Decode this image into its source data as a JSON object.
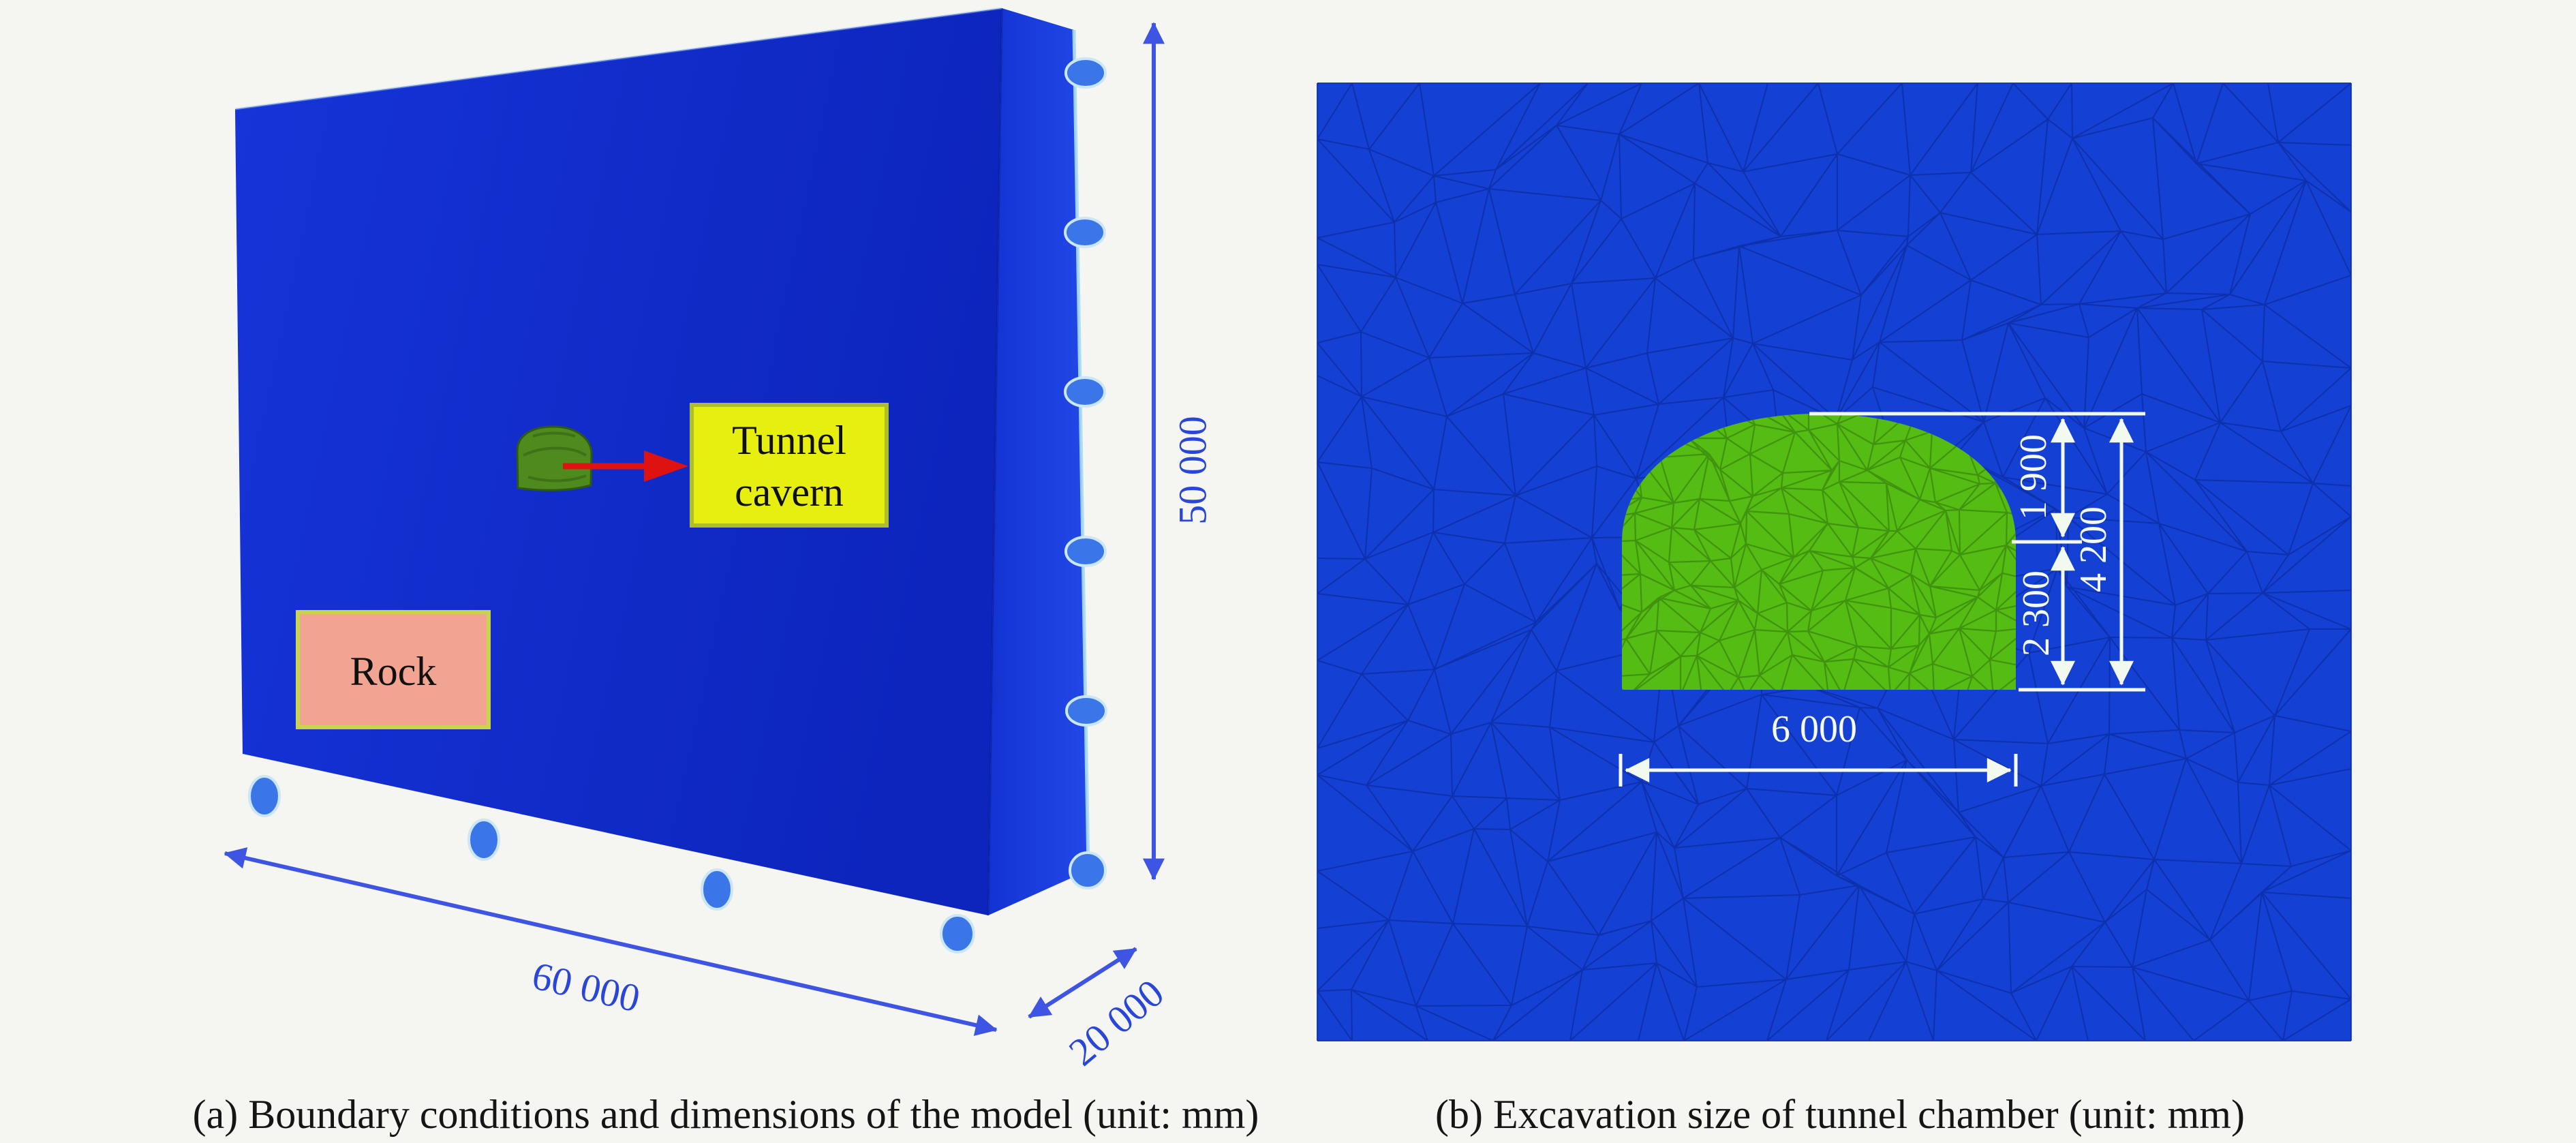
{
  "panel_a": {
    "caption": "(a) Boundary conditions and dimensions of the model (unit: mm)",
    "rock_label": "Rock",
    "tunnel_label_line1": "Tunnel",
    "tunnel_label_line2": "cavern",
    "dim_width": "60 000",
    "dim_height": "50 000",
    "dim_depth": "20 000"
  },
  "panel_b": {
    "caption": "(b) Excavation size of tunnel chamber (unit: mm)",
    "dim_total_width": "6 000",
    "dim_arch_height": "1 900",
    "dim_wall_height": "2 300",
    "dim_total_height": "4 200"
  },
  "colors": {
    "page_bg": "#f5f5f2",
    "block_front_blue": "#1129cb",
    "block_side_blue": "#1c3ce2",
    "mesh_background_blue": "#1540d4",
    "mesh_line_blue": "#0c2ea6",
    "tunnel_green": "#54bc12",
    "tunnel_mesh_green": "#3e8e0e",
    "dimension_blue": "#3d55e2",
    "dimension_white": "#f2f9ef",
    "callout_yellow": "#e7ef10",
    "rock_pink": "#f2a493",
    "arrow_red": "#df1212",
    "roller_dot_blue": "#3b76e8"
  }
}
